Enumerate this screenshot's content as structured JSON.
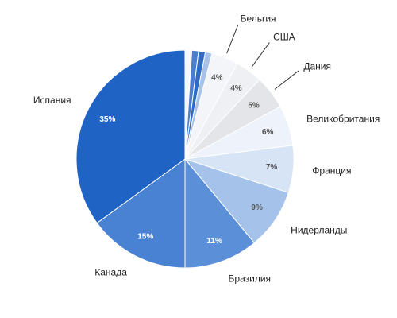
{
  "chart_data": {
    "type": "pie",
    "categories": [
      null,
      null,
      null,
      null,
      "Бельгия",
      "США",
      "Дания",
      "Великобритания",
      "Франция",
      "Нидерланды",
      "Бразилия",
      "Канада",
      "Испания"
    ],
    "values": [
      1,
      1,
      1,
      1,
      4,
      4,
      5,
      6,
      7,
      9,
      11,
      15,
      35
    ],
    "value_labels": [
      null,
      null,
      null,
      null,
      "4%",
      "4%",
      "5%",
      "6%",
      "7%",
      "9%",
      "11%",
      "15%",
      "35%"
    ],
    "colors": [
      "#f5f8fd",
      "#4a7fd0",
      "#2f6cc6",
      "#a7c2e8",
      "#f4f5f8",
      "#eef0f3",
      "#e3e5e8",
      "#edf2fb",
      "#d7e4f5",
      "#a5c2ea",
      "#5b8fd8",
      "#4a82d3",
      "#1f63c4"
    ]
  }
}
